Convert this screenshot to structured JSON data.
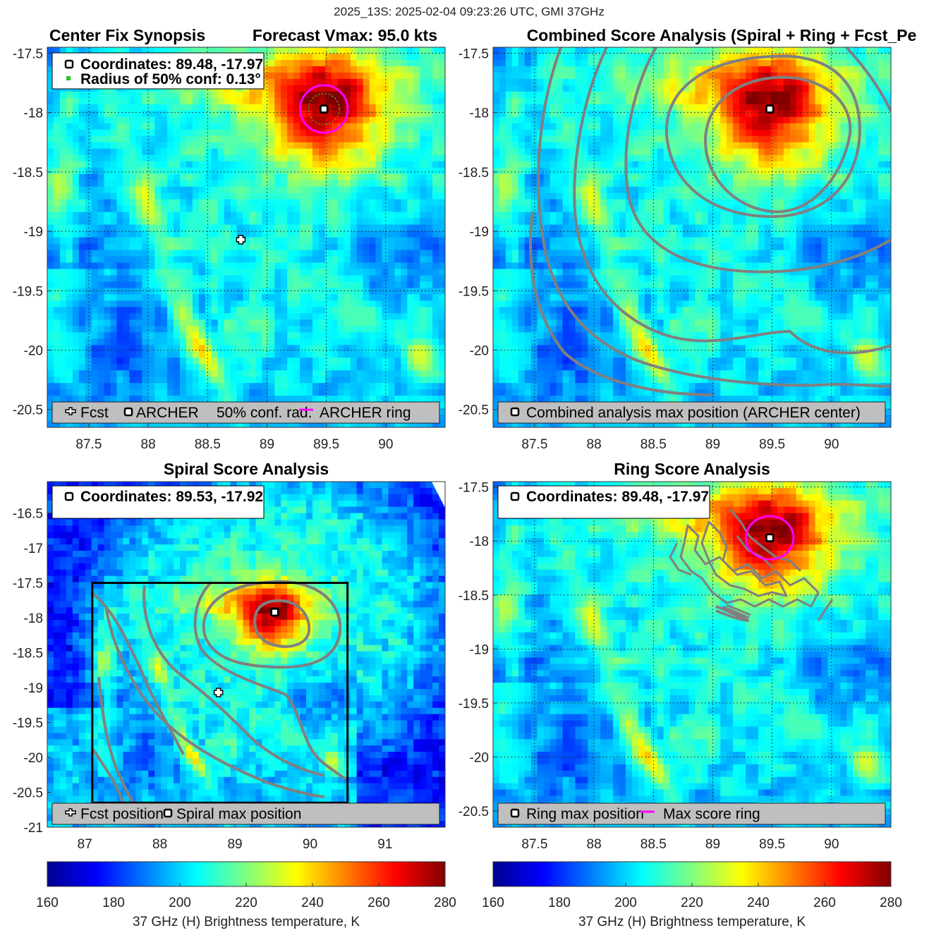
{
  "figure": {
    "suptitle": "2025_13S: 2025-02-04 09:23:26 UTC, GMI 37GHz"
  },
  "colors": {
    "archer_ring": "#ff00ff",
    "conf_circle": "#22cc22",
    "contour": "#808080",
    "legend_bg": "#bfbfbf",
    "search_box": "#000000"
  },
  "chart_data": [
    {
      "id": "p1",
      "type": "heatmap",
      "title_left": "Center Fix Synopsis",
      "title_right": "Forecast Vmax: 95.0 kts",
      "xlim": [
        87.15,
        90.5
      ],
      "ylim": [
        -20.65,
        -17.45
      ],
      "xticks": [
        87.5,
        88,
        88.5,
        89,
        89.5,
        90
      ],
      "yticks": [
        -17.5,
        -18,
        -18.5,
        -19,
        -19.5,
        -20,
        -20.5
      ],
      "grid": true,
      "info_lines": [
        "Coordinates: 89.48, -17.97",
        "Radius of 50% conf: 0.13°"
      ],
      "legend": [
        "Fcst",
        "ARCHER",
        "50% conf. rad.",
        "ARCHER ring"
      ],
      "fcst_position": [
        88.78,
        -19.07
      ],
      "archer_center": [
        89.48,
        -17.97
      ],
      "ring_radius_deg": 0.2,
      "conf_radius_deg": 0.13
    },
    {
      "id": "p2",
      "type": "heatmap",
      "title": "Combined Score Analysis (Spiral + Ring + Fcst_Pe",
      "xlim": [
        87.15,
        90.5
      ],
      "ylim": [
        -20.65,
        -17.45
      ],
      "xticks": [
        87.5,
        88,
        88.5,
        89,
        89.5,
        90
      ],
      "yticks": [
        -17.5,
        -18,
        -18.5,
        -19,
        -19.5,
        -20,
        -20.5
      ],
      "grid": true,
      "legend": [
        "Combined analysis max position (ARCHER center)"
      ],
      "max_position": [
        89.48,
        -17.97
      ]
    },
    {
      "id": "p3",
      "type": "heatmap",
      "title": "Spiral Score Analysis",
      "xlim": [
        86.5,
        91.8
      ],
      "ylim": [
        -21.0,
        -16.05
      ],
      "xticks": [
        87,
        88,
        89,
        90,
        91
      ],
      "yticks": [
        -16.5,
        -17,
        -17.5,
        -18,
        -18.5,
        -19,
        -19.5,
        -20,
        -20.5,
        -21
      ],
      "grid": false,
      "info_lines": [
        "Coordinates: 89.53, -17.92"
      ],
      "legend": [
        "Fcst position",
        "Spiral max position"
      ],
      "fcst_position": [
        88.78,
        -19.07
      ],
      "max_position": [
        89.53,
        -17.92
      ],
      "search_box": [
        87.1,
        -20.65,
        90.5,
        -17.5
      ]
    },
    {
      "id": "p4",
      "type": "heatmap",
      "title": "Ring Score Analysis",
      "xlim": [
        87.15,
        90.5
      ],
      "ylim": [
        -20.65,
        -17.45
      ],
      "xticks": [
        87.5,
        88,
        88.5,
        89,
        89.5,
        90
      ],
      "yticks": [
        -17.5,
        -18,
        -18.5,
        -19,
        -19.5,
        -20,
        -20.5
      ],
      "grid": true,
      "info_lines": [
        "Coordinates: 89.48, -17.97"
      ],
      "legend": [
        "Ring max position",
        "Max score ring"
      ],
      "max_position": [
        89.48,
        -17.97
      ],
      "ring_radius_deg": 0.2
    }
  ],
  "colorbars": [
    {
      "ticks": [
        160,
        180,
        200,
        220,
        240,
        260,
        280
      ],
      "range": [
        160,
        280
      ],
      "colormap": "jet",
      "label": "37 GHz (H) Brightness temperature, K"
    },
    {
      "ticks": [
        160,
        180,
        200,
        220,
        240,
        260,
        280
      ],
      "range": [
        160,
        280
      ],
      "colormap": "jet",
      "label": "37 GHz (H) Brightness temperature, K"
    }
  ]
}
